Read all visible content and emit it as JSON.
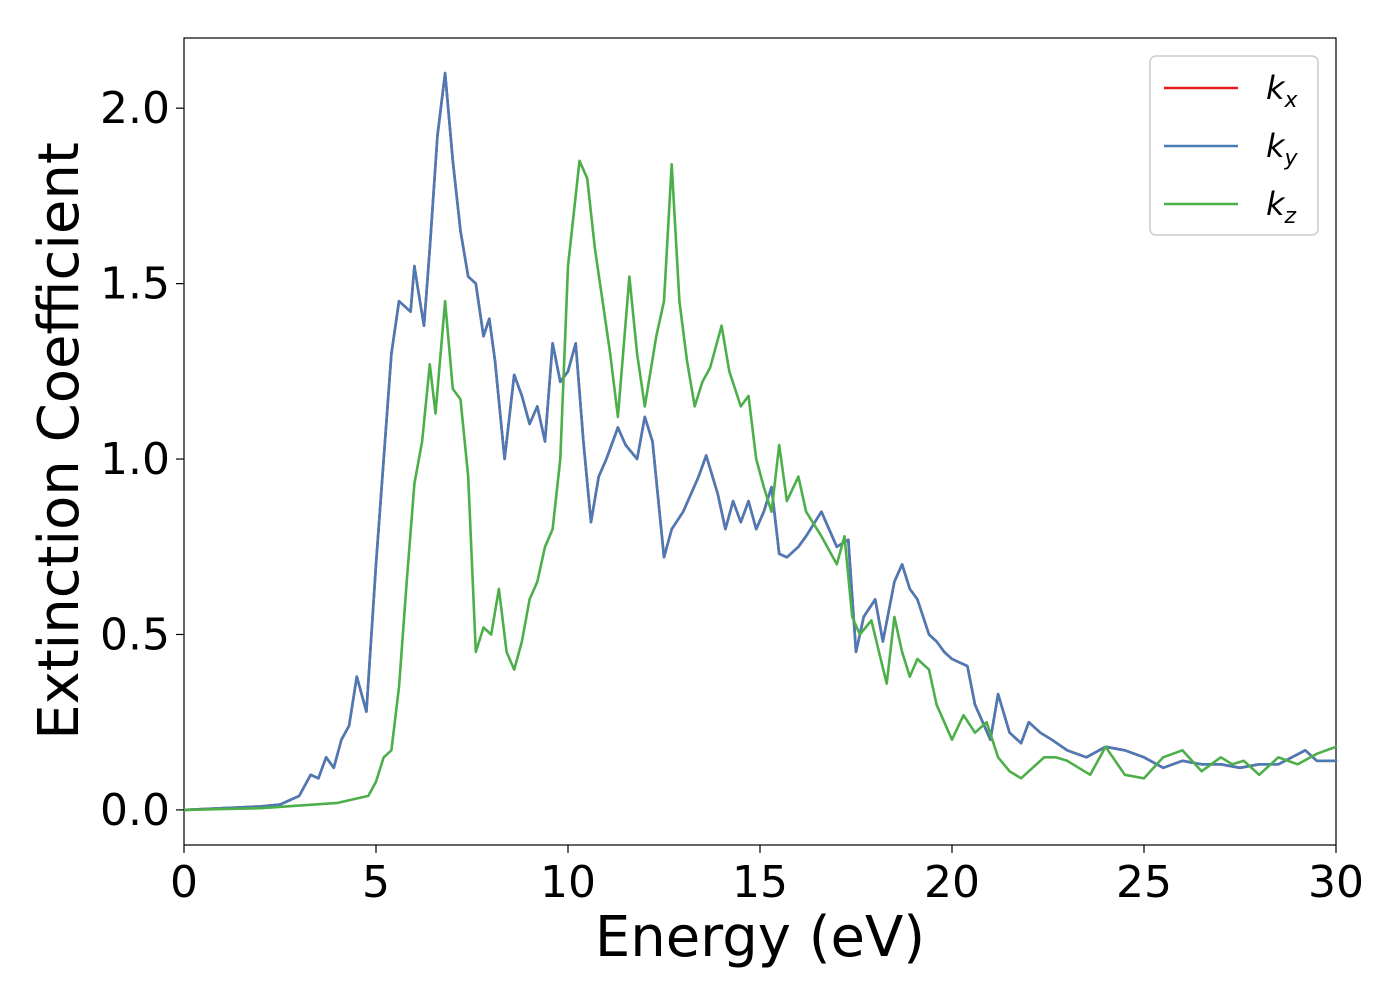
{
  "chart_data": {
    "type": "line",
    "xlabel": "Energy (eV)",
    "ylabel": "Extinction Coefficient",
    "xlim": [
      0,
      30
    ],
    "ylim": [
      -0.1,
      2.2
    ],
    "xticks": [
      0,
      5,
      10,
      15,
      20,
      25,
      30
    ],
    "xtick_labels": [
      "0",
      "5",
      "10",
      "15",
      "20",
      "25",
      "30"
    ],
    "yticks": [
      0.0,
      0.5,
      1.0,
      1.5,
      2.0
    ],
    "ytick_labels": [
      "0.0",
      "0.5",
      "1.0",
      "1.5",
      "2.0"
    ],
    "grid": false,
    "legend_position": "top-right",
    "colors": {
      "kx": "#e41a1c",
      "ky": "#4a7bb7",
      "kz": "#4daf4a"
    },
    "series": [
      {
        "name": "k_x",
        "legend_main": "k",
        "legend_sub": "x",
        "color": "#e41a1c",
        "x": [
          0,
          1,
          2,
          2.5,
          3,
          3.3,
          3.5,
          3.7,
          3.9,
          4.1,
          4.3,
          4.5,
          4.75,
          5.0,
          5.2,
          5.4,
          5.6,
          5.9,
          6.0,
          6.1,
          6.25,
          6.4,
          6.6,
          6.8,
          7.0,
          7.2,
          7.4,
          7.6,
          7.8,
          7.95,
          8.1,
          8.35,
          8.6,
          8.8,
          9.0,
          9.2,
          9.4,
          9.6,
          9.8,
          10.0,
          10.2,
          10.4,
          10.6,
          10.8,
          11.0,
          11.3,
          11.5,
          11.8,
          12.0,
          12.2,
          12.5,
          12.7,
          13.0,
          13.2,
          13.4,
          13.6,
          13.9,
          14.1,
          14.3,
          14.5,
          14.7,
          14.9,
          15.1,
          15.3,
          15.5,
          15.7,
          16.0,
          16.2,
          16.6,
          17.0,
          17.3,
          17.5,
          17.7,
          18.0,
          18.2,
          18.5,
          18.7,
          18.9,
          19.1,
          19.4,
          19.6,
          19.8,
          20.0,
          20.4,
          20.6,
          20.8,
          21.0,
          21.2,
          21.5,
          21.8,
          22.0,
          22.3,
          22.6,
          23.0,
          23.5,
          24.0,
          24.5,
          25.0,
          25.5,
          26.0,
          26.5,
          27.0,
          27.5,
          28.0,
          28.5,
          29.2,
          29.5,
          30.0
        ],
        "values": [
          0.0,
          0.005,
          0.01,
          0.015,
          0.04,
          0.1,
          0.09,
          0.15,
          0.12,
          0.2,
          0.24,
          0.38,
          0.28,
          0.7,
          1.0,
          1.3,
          1.45,
          1.42,
          1.55,
          1.48,
          1.38,
          1.6,
          1.92,
          2.1,
          1.85,
          1.65,
          1.52,
          1.5,
          1.35,
          1.4,
          1.28,
          1.0,
          1.24,
          1.18,
          1.1,
          1.15,
          1.05,
          1.33,
          1.22,
          1.25,
          1.33,
          1.05,
          0.82,
          0.95,
          1.0,
          1.09,
          1.04,
          1.0,
          1.12,
          1.05,
          0.72,
          0.8,
          0.85,
          0.9,
          0.95,
          1.01,
          0.9,
          0.8,
          0.88,
          0.82,
          0.88,
          0.8,
          0.85,
          0.92,
          0.73,
          0.72,
          0.75,
          0.78,
          0.85,
          0.75,
          0.77,
          0.45,
          0.55,
          0.6,
          0.48,
          0.65,
          0.7,
          0.63,
          0.6,
          0.5,
          0.48,
          0.45,
          0.43,
          0.41,
          0.3,
          0.25,
          0.2,
          0.33,
          0.22,
          0.19,
          0.25,
          0.22,
          0.2,
          0.17,
          0.15,
          0.18,
          0.17,
          0.15,
          0.12,
          0.14,
          0.13,
          0.13,
          0.12,
          0.13,
          0.13,
          0.17,
          0.14,
          0.14
        ]
      },
      {
        "name": "k_y",
        "legend_main": "k",
        "legend_sub": "y",
        "color": "#4a7bb7",
        "x": [
          0,
          1,
          2,
          2.5,
          3,
          3.3,
          3.5,
          3.7,
          3.9,
          4.1,
          4.3,
          4.5,
          4.75,
          5.0,
          5.2,
          5.4,
          5.6,
          5.9,
          6.0,
          6.1,
          6.25,
          6.4,
          6.6,
          6.8,
          7.0,
          7.2,
          7.4,
          7.6,
          7.8,
          7.95,
          8.1,
          8.35,
          8.6,
          8.8,
          9.0,
          9.2,
          9.4,
          9.6,
          9.8,
          10.0,
          10.2,
          10.4,
          10.6,
          10.8,
          11.0,
          11.3,
          11.5,
          11.8,
          12.0,
          12.2,
          12.5,
          12.7,
          13.0,
          13.2,
          13.4,
          13.6,
          13.9,
          14.1,
          14.3,
          14.5,
          14.7,
          14.9,
          15.1,
          15.3,
          15.5,
          15.7,
          16.0,
          16.2,
          16.6,
          17.0,
          17.3,
          17.5,
          17.7,
          18.0,
          18.2,
          18.5,
          18.7,
          18.9,
          19.1,
          19.4,
          19.6,
          19.8,
          20.0,
          20.4,
          20.6,
          20.8,
          21.0,
          21.2,
          21.5,
          21.8,
          22.0,
          22.3,
          22.6,
          23.0,
          23.5,
          24.0,
          24.5,
          25.0,
          25.5,
          26.0,
          26.5,
          27.0,
          27.5,
          28.0,
          28.5,
          29.2,
          29.5,
          30.0
        ],
        "values": [
          0.0,
          0.005,
          0.01,
          0.015,
          0.04,
          0.1,
          0.09,
          0.15,
          0.12,
          0.2,
          0.24,
          0.38,
          0.28,
          0.7,
          1.0,
          1.3,
          1.45,
          1.42,
          1.55,
          1.48,
          1.38,
          1.6,
          1.92,
          2.1,
          1.85,
          1.65,
          1.52,
          1.5,
          1.35,
          1.4,
          1.28,
          1.0,
          1.24,
          1.18,
          1.1,
          1.15,
          1.05,
          1.33,
          1.22,
          1.25,
          1.33,
          1.05,
          0.82,
          0.95,
          1.0,
          1.09,
          1.04,
          1.0,
          1.12,
          1.05,
          0.72,
          0.8,
          0.85,
          0.9,
          0.95,
          1.01,
          0.9,
          0.8,
          0.88,
          0.82,
          0.88,
          0.8,
          0.85,
          0.92,
          0.73,
          0.72,
          0.75,
          0.78,
          0.85,
          0.75,
          0.77,
          0.45,
          0.55,
          0.6,
          0.48,
          0.65,
          0.7,
          0.63,
          0.6,
          0.5,
          0.48,
          0.45,
          0.43,
          0.41,
          0.3,
          0.25,
          0.2,
          0.33,
          0.22,
          0.19,
          0.25,
          0.22,
          0.2,
          0.17,
          0.15,
          0.18,
          0.17,
          0.15,
          0.12,
          0.14,
          0.13,
          0.13,
          0.12,
          0.13,
          0.13,
          0.17,
          0.14,
          0.14
        ]
      },
      {
        "name": "k_z",
        "legend_main": "k",
        "legend_sub": "z",
        "color": "#4daf4a",
        "x": [
          0,
          2,
          4,
          4.8,
          5.0,
          5.2,
          5.4,
          5.6,
          5.8,
          6.0,
          6.2,
          6.4,
          6.55,
          6.8,
          7.0,
          7.2,
          7.4,
          7.6,
          7.8,
          8.0,
          8.2,
          8.4,
          8.6,
          8.8,
          9.0,
          9.2,
          9.4,
          9.6,
          9.8,
          10.0,
          10.3,
          10.5,
          10.7,
          10.9,
          11.1,
          11.3,
          11.6,
          11.8,
          12.0,
          12.3,
          12.5,
          12.7,
          12.9,
          13.1,
          13.3,
          13.5,
          13.7,
          14.0,
          14.2,
          14.5,
          14.7,
          14.9,
          15.1,
          15.3,
          15.5,
          15.7,
          16.0,
          16.2,
          16.6,
          17.0,
          17.2,
          17.4,
          17.6,
          17.9,
          18.1,
          18.3,
          18.5,
          18.7,
          18.9,
          19.1,
          19.4,
          19.6,
          19.8,
          20.0,
          20.3,
          20.6,
          20.9,
          21.2,
          21.5,
          21.8,
          22.1,
          22.4,
          22.7,
          23.0,
          23.3,
          23.6,
          24.0,
          24.5,
          25.0,
          25.5,
          26.0,
          26.5,
          27.0,
          27.3,
          27.6,
          28.0,
          28.5,
          29.0,
          29.5,
          30.0
        ],
        "values": [
          0.0,
          0.005,
          0.02,
          0.04,
          0.08,
          0.15,
          0.17,
          0.35,
          0.65,
          0.93,
          1.05,
          1.27,
          1.13,
          1.45,
          1.2,
          1.17,
          0.95,
          0.45,
          0.52,
          0.5,
          0.63,
          0.45,
          0.4,
          0.48,
          0.6,
          0.65,
          0.75,
          0.8,
          1.0,
          1.55,
          1.85,
          1.8,
          1.6,
          1.45,
          1.3,
          1.12,
          1.52,
          1.3,
          1.15,
          1.35,
          1.45,
          1.84,
          1.45,
          1.28,
          1.15,
          1.22,
          1.26,
          1.38,
          1.25,
          1.15,
          1.18,
          1.0,
          0.92,
          0.85,
          1.04,
          0.88,
          0.95,
          0.85,
          0.78,
          0.7,
          0.78,
          0.55,
          0.5,
          0.54,
          0.45,
          0.36,
          0.55,
          0.45,
          0.38,
          0.43,
          0.4,
          0.3,
          0.25,
          0.2,
          0.27,
          0.22,
          0.25,
          0.15,
          0.11,
          0.09,
          0.12,
          0.15,
          0.15,
          0.14,
          0.12,
          0.1,
          0.18,
          0.1,
          0.09,
          0.15,
          0.17,
          0.11,
          0.15,
          0.13,
          0.14,
          0.1,
          0.15,
          0.13,
          0.16,
          0.18
        ]
      }
    ]
  }
}
